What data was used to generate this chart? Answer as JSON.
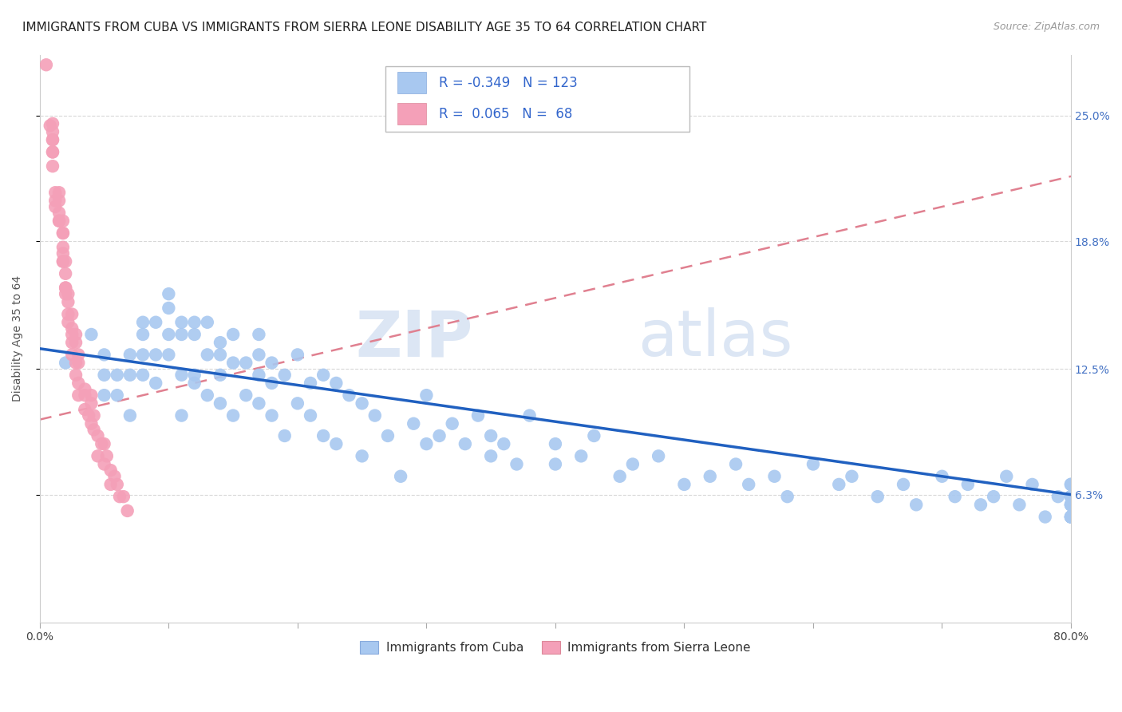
{
  "title": "IMMIGRANTS FROM CUBA VS IMMIGRANTS FROM SIERRA LEONE DISABILITY AGE 35 TO 64 CORRELATION CHART",
  "source": "Source: ZipAtlas.com",
  "ylabel": "Disability Age 35 to 64",
  "ytick_labels": [
    "6.3%",
    "12.5%",
    "18.8%",
    "25.0%"
  ],
  "ytick_values": [
    0.063,
    0.125,
    0.188,
    0.25
  ],
  "xlim": [
    0.0,
    0.8
  ],
  "ylim": [
    0.0,
    0.28
  ],
  "legend_cuba_R": "-0.349",
  "legend_cuba_N": "123",
  "legend_sl_R": "0.065",
  "legend_sl_N": "68",
  "cuba_color": "#a8c8f0",
  "sl_color": "#f4a0b8",
  "cuba_line_color": "#2060c0",
  "sl_line_color": "#e08090",
  "watermark_zip": "ZIP",
  "watermark_atlas": "atlas",
  "title_fontsize": 11,
  "source_fontsize": 9,
  "axis_label_fontsize": 10,
  "tick_fontsize": 10,
  "legend_fontsize": 12,
  "background_color": "#ffffff",
  "cuba_scatter_x": [
    0.02,
    0.04,
    0.05,
    0.05,
    0.05,
    0.06,
    0.06,
    0.07,
    0.07,
    0.07,
    0.08,
    0.08,
    0.08,
    0.08,
    0.09,
    0.09,
    0.09,
    0.1,
    0.1,
    0.1,
    0.1,
    0.11,
    0.11,
    0.11,
    0.11,
    0.12,
    0.12,
    0.12,
    0.12,
    0.13,
    0.13,
    0.13,
    0.14,
    0.14,
    0.14,
    0.14,
    0.15,
    0.15,
    0.15,
    0.16,
    0.16,
    0.17,
    0.17,
    0.17,
    0.17,
    0.18,
    0.18,
    0.18,
    0.19,
    0.19,
    0.2,
    0.2,
    0.21,
    0.21,
    0.22,
    0.22,
    0.23,
    0.23,
    0.24,
    0.25,
    0.25,
    0.26,
    0.27,
    0.28,
    0.29,
    0.3,
    0.3,
    0.31,
    0.32,
    0.33,
    0.34,
    0.35,
    0.35,
    0.36,
    0.37,
    0.38,
    0.4,
    0.4,
    0.42,
    0.43,
    0.45,
    0.46,
    0.48,
    0.5,
    0.52,
    0.54,
    0.55,
    0.57,
    0.58,
    0.6,
    0.62,
    0.63,
    0.65,
    0.67,
    0.68,
    0.7,
    0.71,
    0.72,
    0.73,
    0.74,
    0.75,
    0.76,
    0.77,
    0.78,
    0.79,
    0.8,
    0.8,
    0.8,
    0.8,
    0.8,
    0.8,
    0.8,
    0.8,
    0.8,
    0.8,
    0.8,
    0.8,
    0.8,
    0.8,
    0.8,
    0.8,
    0.8,
    0.8
  ],
  "cuba_scatter_y": [
    0.128,
    0.142,
    0.112,
    0.132,
    0.122,
    0.122,
    0.112,
    0.132,
    0.102,
    0.122,
    0.148,
    0.132,
    0.122,
    0.142,
    0.148,
    0.118,
    0.132,
    0.162,
    0.142,
    0.132,
    0.155,
    0.142,
    0.122,
    0.148,
    0.102,
    0.142,
    0.122,
    0.118,
    0.148,
    0.132,
    0.148,
    0.112,
    0.138,
    0.132,
    0.122,
    0.108,
    0.128,
    0.142,
    0.102,
    0.128,
    0.112,
    0.142,
    0.108,
    0.132,
    0.122,
    0.118,
    0.102,
    0.128,
    0.122,
    0.092,
    0.108,
    0.132,
    0.102,
    0.118,
    0.092,
    0.122,
    0.118,
    0.088,
    0.112,
    0.108,
    0.082,
    0.102,
    0.092,
    0.072,
    0.098,
    0.112,
    0.088,
    0.092,
    0.098,
    0.088,
    0.102,
    0.082,
    0.092,
    0.088,
    0.078,
    0.102,
    0.088,
    0.078,
    0.082,
    0.092,
    0.072,
    0.078,
    0.082,
    0.068,
    0.072,
    0.078,
    0.068,
    0.072,
    0.062,
    0.078,
    0.068,
    0.072,
    0.062,
    0.068,
    0.058,
    0.072,
    0.062,
    0.068,
    0.058,
    0.062,
    0.072,
    0.058,
    0.068,
    0.052,
    0.062,
    0.068,
    0.058,
    0.052,
    0.062,
    0.068,
    0.052,
    0.058,
    0.062,
    0.052,
    0.058,
    0.062,
    0.052,
    0.068,
    0.058,
    0.052,
    0.062,
    0.058,
    0.052
  ],
  "sl_scatter_x": [
    0.005,
    0.008,
    0.01,
    0.01,
    0.01,
    0.01,
    0.01,
    0.01,
    0.01,
    0.012,
    0.012,
    0.012,
    0.015,
    0.015,
    0.015,
    0.015,
    0.015,
    0.018,
    0.018,
    0.018,
    0.018,
    0.018,
    0.018,
    0.018,
    0.02,
    0.02,
    0.02,
    0.02,
    0.02,
    0.022,
    0.022,
    0.022,
    0.022,
    0.025,
    0.025,
    0.025,
    0.025,
    0.025,
    0.028,
    0.028,
    0.028,
    0.028,
    0.03,
    0.03,
    0.03,
    0.03,
    0.035,
    0.035,
    0.035,
    0.038,
    0.04,
    0.04,
    0.04,
    0.042,
    0.042,
    0.045,
    0.045,
    0.048,
    0.05,
    0.05,
    0.052,
    0.055,
    0.055,
    0.058,
    0.06,
    0.062,
    0.065,
    0.068
  ],
  "sl_scatter_y": [
    0.275,
    0.245,
    0.232,
    0.238,
    0.242,
    0.225,
    0.238,
    0.232,
    0.246,
    0.205,
    0.212,
    0.208,
    0.198,
    0.202,
    0.212,
    0.208,
    0.198,
    0.185,
    0.192,
    0.198,
    0.178,
    0.182,
    0.192,
    0.178,
    0.165,
    0.172,
    0.162,
    0.178,
    0.165,
    0.152,
    0.162,
    0.148,
    0.158,
    0.145,
    0.138,
    0.152,
    0.142,
    0.132,
    0.142,
    0.128,
    0.138,
    0.122,
    0.132,
    0.118,
    0.128,
    0.112,
    0.115,
    0.105,
    0.112,
    0.102,
    0.112,
    0.098,
    0.108,
    0.095,
    0.102,
    0.092,
    0.082,
    0.088,
    0.088,
    0.078,
    0.082,
    0.075,
    0.068,
    0.072,
    0.068,
    0.062,
    0.062,
    0.055
  ],
  "sl_trend_x": [
    0.0,
    0.8
  ],
  "sl_trend_y": [
    0.098,
    0.215
  ]
}
